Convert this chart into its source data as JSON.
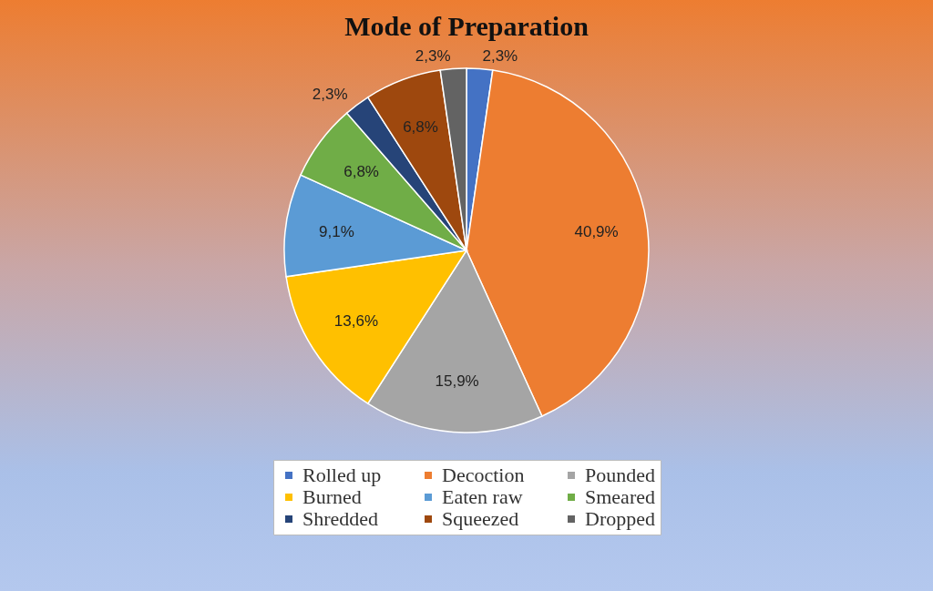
{
  "chart_data": {
    "type": "pie",
    "title": "Mode of Preparation",
    "categories": [
      "Rolled up",
      "Decoction",
      "Pounded",
      "Burned",
      "Eaten raw",
      "Smeared",
      "Shredded",
      "Squeezed",
      "Dropped"
    ],
    "values": [
      2.3,
      40.9,
      15.9,
      13.6,
      9.1,
      6.8,
      2.3,
      6.8,
      2.3
    ],
    "value_labels": [
      "2,3%",
      "40,9%",
      "15,9%",
      "13,6%",
      "9,1%",
      "6,8%",
      "2,3%",
      "6,8%",
      "2,3%"
    ],
    "colors": [
      "#4472c4",
      "#ed7d31",
      "#a5a5a5",
      "#ffc000",
      "#5b9bd5",
      "#70ad47",
      "#264478",
      "#9e480e",
      "#636363"
    ],
    "legend": "bottom"
  }
}
